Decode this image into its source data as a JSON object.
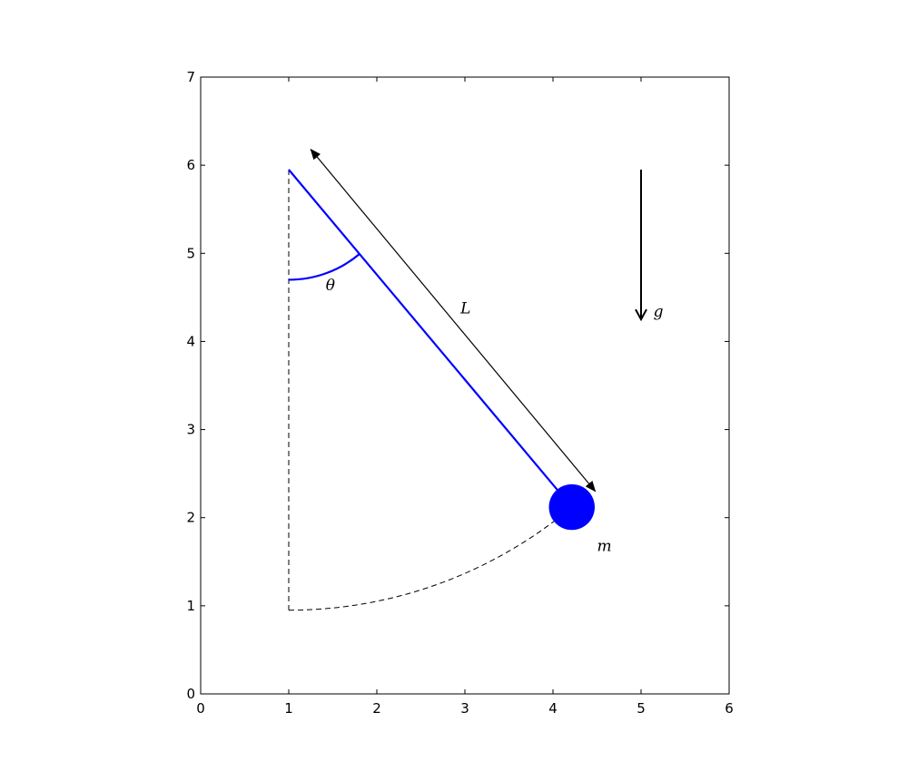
{
  "axes": {
    "xlim": [
      0,
      6
    ],
    "ylim": [
      0,
      7
    ],
    "xticks": [
      "0",
      "1",
      "2",
      "3",
      "4",
      "5",
      "6"
    ],
    "yticks": [
      "0",
      "1",
      "2",
      "3",
      "4",
      "5",
      "6",
      "7"
    ]
  },
  "pendulum": {
    "pivot": [
      1,
      5.95
    ],
    "length": 5,
    "angle_deg": 40,
    "bob_radius": 0.26,
    "theta_arc_radius": 1.25,
    "rod_color": "#0000ff",
    "bob_color": "#0000ff"
  },
  "length_arrow": {
    "from": [
      1.25,
      6.18
    ],
    "to": [
      4.48,
      2.3
    ]
  },
  "gravity_arrow": {
    "from": [
      5,
      5.95
    ],
    "to": [
      5,
      4.25
    ]
  },
  "labels": {
    "theta": {
      "text": "θ",
      "pos": [
        1.42,
        4.58
      ]
    },
    "length": {
      "text": "L",
      "pos": [
        2.95,
        4.32
      ]
    },
    "gravity": {
      "text": "g",
      "pos": [
        5.14,
        4.28
      ]
    },
    "mass": {
      "text": "m",
      "pos": [
        4.5,
        1.62
      ]
    }
  }
}
